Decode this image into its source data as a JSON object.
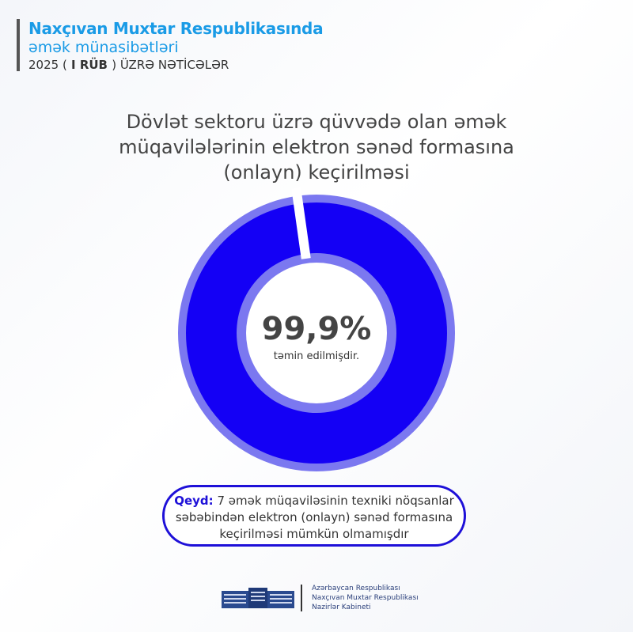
{
  "header": {
    "line1": "Naxçıvan Muxtar Respublikasında",
    "line2": "əmək münasibətləri",
    "line3_year": "2025 (",
    "line3_bold": " I RÜB ",
    "line3_rest": ") ÜZRƏ NƏTİCƏLƏR"
  },
  "chart_data": {
    "type": "pie",
    "title": "Dövlət sektoru üzrə qüvvədə olan əmək müqavilələrinin elektron sənəd formasına (onlayn) keçirilməsi",
    "values": [
      99.9,
      0.1
    ],
    "center_value": "99,9%",
    "center_label": "təmin edilmişdir.",
    "colors": {
      "main": "#1400f5",
      "rim": "#7b78f0",
      "gap": "#ffffff"
    }
  },
  "note": {
    "label": "Qeyd:",
    "text_line1": " 7 əmək müqaviləsinin texniki nöqsanlar",
    "text_line2": "səbəbindən elektron (onlayn) sənəd formasına",
    "text_line3": "keçirilməsi mümkün olmamışdır"
  },
  "footer": {
    "line1": "Azərbaycan Respublikası",
    "line2": "Naxçıvan Muxtar Respublikası",
    "line3": "Nazirlər Kabineti",
    "logo": "government-building-icon"
  }
}
